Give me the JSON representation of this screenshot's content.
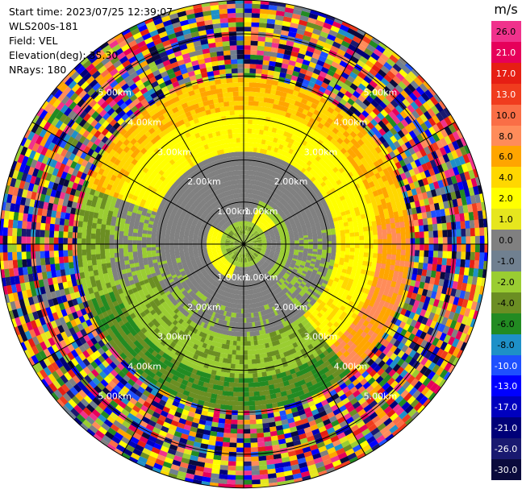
{
  "header": {
    "start_time": "Start time: 2023/07/25 12:39:07",
    "instrument": "WLS200s-181",
    "field": "Field: VEL",
    "elevation": "Elevation(deg): 35.30",
    "nrays": "NRays: 180"
  },
  "colorbar": {
    "unit": "m/s",
    "bins": [
      {
        "label": "26.0",
        "color": "#f0328c"
      },
      {
        "label": "21.0",
        "color": "#e6005a"
      },
      {
        "label": "17.0",
        "color": "#e61e14"
      },
      {
        "label": "13.0",
        "color": "#f03c1e"
      },
      {
        "label": "10.0",
        "color": "#fa6e46"
      },
      {
        "label": "8.0",
        "color": "#ff8c5a"
      },
      {
        "label": "6.0",
        "color": "#ffa500"
      },
      {
        "label": "4.0",
        "color": "#ffd700"
      },
      {
        "label": "2.0",
        "color": "#ffff00"
      },
      {
        "label": "1.0",
        "color": "#e6e61e"
      },
      {
        "label": "0.0",
        "color": "#808080"
      },
      {
        "label": "-1.0",
        "color": "#708090"
      },
      {
        "label": "-2.0",
        "color": "#9acd32"
      },
      {
        "label": "-4.0",
        "color": "#6b8e23"
      },
      {
        "label": "-6.0",
        "color": "#228b22"
      },
      {
        "label": "-8.0",
        "color": "#1e90c8"
      },
      {
        "label": "-10.0",
        "color": "#1e50ff"
      },
      {
        "label": "-13.0",
        "color": "#0000ff"
      },
      {
        "label": "-17.0",
        "color": "#0000be"
      },
      {
        "label": "-21.0",
        "color": "#000078"
      },
      {
        "label": "-26.0",
        "color": "#191970"
      },
      {
        "label": "-30.0",
        "color": "#0a0a3c"
      }
    ]
  },
  "chart_data": {
    "type": "heatmap",
    "projection": "polar PPI",
    "field": "VEL",
    "unit": "m/s",
    "elevation_deg": 35.3,
    "n_rays": 180,
    "range_rings_km": [
      1,
      2,
      3,
      4,
      5
    ],
    "range_ring_labels": [
      "1.00km",
      "2.00km",
      "3.00km",
      "4.00km",
      "5.00km"
    ],
    "azimuth_spokes_deg": [
      0,
      30,
      60,
      90,
      120,
      150,
      180,
      210,
      240,
      270,
      300,
      330
    ],
    "max_range_km": 5.8,
    "velocity_bands": [
      {
        "from_km": 0.0,
        "to_km": 0.5,
        "description": "mixed",
        "value_ms": -2.0
      },
      {
        "from_km": 0.5,
        "to_km": 1.0,
        "value_ms": 0.0
      },
      {
        "from_km": 1.0,
        "to_km": 2.2,
        "value_ms": -1.0
      },
      {
        "from_km": 2.2,
        "to_km": 3.2,
        "north_value_ms": 2.0,
        "south_value_ms": -4.0
      },
      {
        "from_km": 3.2,
        "to_km": 4.0,
        "north_value_ms": 6.0,
        "south_value_ms": -6.0
      },
      {
        "from_km": 4.0,
        "to_km": 5.8,
        "description": "noise"
      }
    ]
  }
}
